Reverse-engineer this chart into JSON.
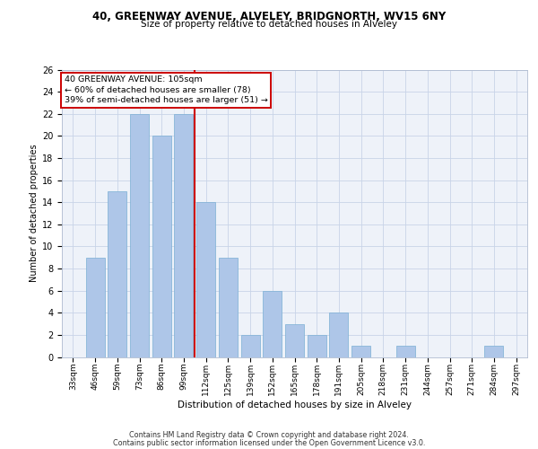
{
  "title1": "40, GREENWAY AVENUE, ALVELEY, BRIDGNORTH, WV15 6NY",
  "title2": "Size of property relative to detached houses in Alveley",
  "xlabel": "Distribution of detached houses by size in Alveley",
  "ylabel": "Number of detached properties",
  "categories": [
    "33sqm",
    "46sqm",
    "59sqm",
    "73sqm",
    "86sqm",
    "99sqm",
    "112sqm",
    "125sqm",
    "139sqm",
    "152sqm",
    "165sqm",
    "178sqm",
    "191sqm",
    "205sqm",
    "218sqm",
    "231sqm",
    "244sqm",
    "257sqm",
    "271sqm",
    "284sqm",
    "297sqm"
  ],
  "values": [
    0,
    9,
    15,
    22,
    20,
    22,
    14,
    9,
    2,
    6,
    3,
    2,
    4,
    1,
    0,
    1,
    0,
    0,
    0,
    1,
    0
  ],
  "bar_color": "#aec6e8",
  "bar_edge_color": "#7bafd4",
  "highlight_index": 6,
  "highlight_color": "#cc0000",
  "annotation_line1": "40 GREENWAY AVENUE: 105sqm",
  "annotation_line2": "← 60% of detached houses are smaller (78)",
  "annotation_line3": "39% of semi-detached houses are larger (51) →",
  "ylim": [
    0,
    26
  ],
  "yticks": [
    0,
    2,
    4,
    6,
    8,
    10,
    12,
    14,
    16,
    18,
    20,
    22,
    24,
    26
  ],
  "footer1": "Contains HM Land Registry data © Crown copyright and database right 2024.",
  "footer2": "Contains public sector information licensed under the Open Government Licence v3.0.",
  "bg_color": "#eef2f9",
  "grid_color": "#c8d4e8",
  "title1_fontsize": 8.5,
  "title2_fontsize": 7.5,
  "ylabel_fontsize": 7,
  "xlabel_fontsize": 7.5,
  "tick_fontsize": 6.5,
  "ytick_fontsize": 7,
  "annotation_fontsize": 6.8,
  "footer_fontsize": 5.8
}
